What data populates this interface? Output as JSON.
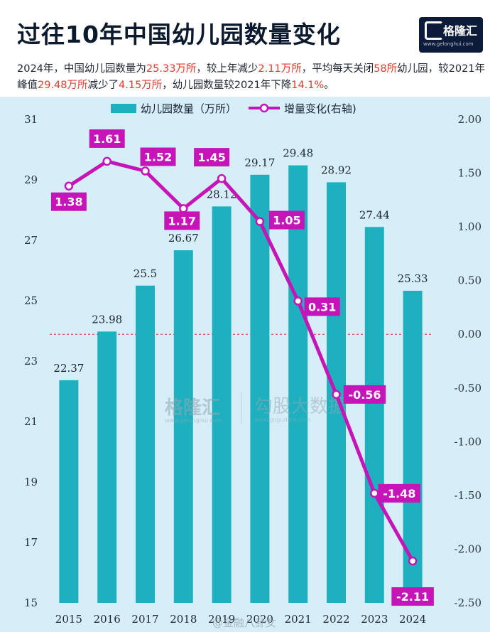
{
  "title": "过往10年中国幼儿园数量变化",
  "summary": [
    {
      "text": "2024年，中国幼儿园数量为",
      "hl": false
    },
    {
      "text": "25.33万所",
      "hl": true
    },
    {
      "text": "，较上年减少",
      "hl": false
    },
    {
      "text": "2.11万所",
      "hl": true
    },
    {
      "text": "，平均每天关闭",
      "hl": false
    },
    {
      "text": "58所",
      "hl": true
    },
    {
      "text": "幼儿园，较2021年峰值",
      "hl": false
    },
    {
      "text": "29.48万所",
      "hl": true
    },
    {
      "text": "减少了",
      "hl": false
    },
    {
      "text": "4.15万所",
      "hl": true
    },
    {
      "text": "，幼儿园数量较2021年下降",
      "hl": false
    },
    {
      "text": "14.1%",
      "hl": true
    },
    {
      "text": "。",
      "hl": false
    }
  ],
  "logo": {
    "name": "格隆汇",
    "url": "www.gelonghui.com"
  },
  "watermark": {
    "left_name": "格隆汇",
    "left_url": "www.gelonghui.com",
    "right_name": "勾股大数据",
    "right_url": "www.gogudata.com"
  },
  "footer_watermark": "@金融八卦女",
  "colors": {
    "bar": "#1fb0c0",
    "line": "#c514b7",
    "zero_line": "#d9342b",
    "background": "#d6eef7",
    "highlight": "#e03b2f"
  },
  "chart_data": {
    "type": "bar",
    "categories": [
      "2015",
      "2016",
      "2017",
      "2018",
      "2019",
      "2020",
      "2021",
      "2022",
      "2023",
      "2024"
    ],
    "series": [
      {
        "name": "幼儿园数量（万所）",
        "type": "bar",
        "axis": "left",
        "values": [
          22.37,
          23.98,
          25.5,
          26.67,
          28.12,
          29.17,
          29.48,
          28.92,
          27.44,
          25.33
        ],
        "labels": [
          "22.37",
          "23.98",
          "25.5",
          "26.67",
          "28.12",
          "29.17",
          "29.48",
          "28.92",
          "27.44",
          "25.33"
        ]
      },
      {
        "name": "增量变化(右轴)",
        "type": "line",
        "axis": "right",
        "values": [
          1.38,
          1.61,
          1.52,
          1.17,
          1.45,
          1.05,
          0.31,
          -0.56,
          -1.48,
          -2.11
        ],
        "labels": [
          "1.38",
          "1.61",
          "1.52",
          "1.17",
          "1.45",
          "1.05",
          "0.31",
          "-0.56",
          "-1.48",
          "-2.11"
        ]
      }
    ],
    "y_left": {
      "range": [
        15,
        31
      ],
      "ticks": [
        "15",
        "17",
        "19",
        "21",
        "23",
        "25",
        "27",
        "29",
        "31"
      ]
    },
    "y_right": {
      "range": [
        -2.5,
        2.0
      ],
      "ticks": [
        "2.00",
        "1.50",
        "1.00",
        "0.50",
        "0.00",
        "-0.50",
        "-1.00",
        "-1.50",
        "-2.00",
        "-2.50"
      ]
    },
    "reference_line": 0,
    "legend_position": "top-center",
    "grid": false
  }
}
